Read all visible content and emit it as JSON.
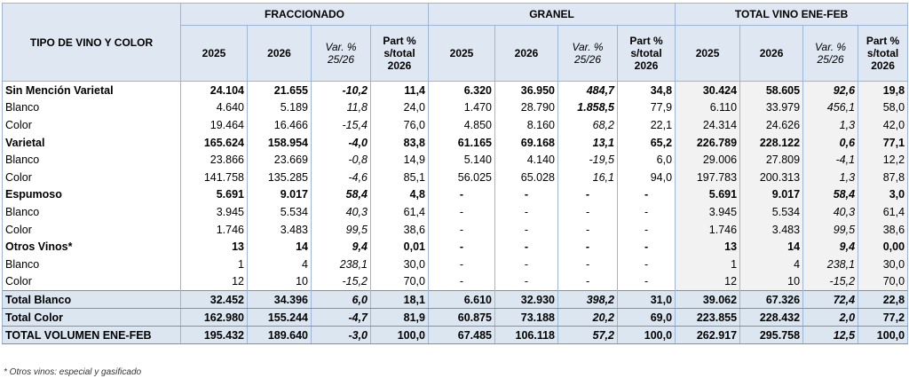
{
  "table": {
    "first_header": "TIPO DE VINO Y COLOR",
    "groups": [
      "FRACCIONADO",
      "GRANEL",
      "TOTAL VINO ENE-FEB"
    ],
    "columns": [
      "2025",
      "2026",
      "Var. %\n25/26",
      "Part %\ns/total\n2026"
    ],
    "rows": [
      {
        "label": "Sin Mención Varietal",
        "cells": [
          "24.104",
          "21.655",
          "-10,2",
          "11,4",
          "6.320",
          "36.950",
          "484,7",
          "34,8",
          "30.424",
          "58.605",
          "92,6",
          "19,8"
        ]
      },
      {
        "label": "Blanco",
        "cells": [
          "4.640",
          "5.189",
          "11,8",
          "24,0",
          "1.470",
          "28.790",
          "1.858,5",
          "77,9",
          "6.110",
          "33.979",
          "456,1",
          "58,0"
        ]
      },
      {
        "label": "Color",
        "cells": [
          "19.464",
          "16.466",
          "-15,4",
          "76,0",
          "4.850",
          "8.160",
          "68,2",
          "22,1",
          "24.314",
          "24.626",
          "1,3",
          "42,0"
        ]
      },
      {
        "label": "Varietal",
        "cells": [
          "165.624",
          "158.954",
          "-4,0",
          "83,8",
          "61.165",
          "69.168",
          "13,1",
          "65,2",
          "226.789",
          "228.122",
          "0,6",
          "77,1"
        ]
      },
      {
        "label": "Blanco",
        "cells": [
          "23.866",
          "23.669",
          "-0,8",
          "14,9",
          "5.140",
          "4.140",
          "-19,5",
          "6,0",
          "29.006",
          "27.809",
          "-4,1",
          "12,2"
        ]
      },
      {
        "label": "Color",
        "cells": [
          "141.758",
          "135.285",
          "-4,6",
          "85,1",
          "56.025",
          "65.028",
          "16,1",
          "94,0",
          "197.783",
          "200.313",
          "1,3",
          "87,8"
        ]
      },
      {
        "label": "Espumoso",
        "cells": [
          "5.691",
          "9.017",
          "58,4",
          "4,8",
          "-",
          "-",
          "-",
          "-",
          "5.691",
          "9.017",
          "58,4",
          "3,0"
        ]
      },
      {
        "label": "Blanco",
        "cells": [
          "3.945",
          "5.534",
          "40,3",
          "61,4",
          "-",
          "-",
          "-",
          "-",
          "3.945",
          "5.534",
          "40,3",
          "61,4"
        ]
      },
      {
        "label": "Color",
        "cells": [
          "1.746",
          "3.483",
          "99,5",
          "38,6",
          "-",
          "-",
          "-",
          "-",
          "1.746",
          "3.483",
          "99,5",
          "38,6"
        ]
      },
      {
        "label": "Otros Vinos*",
        "cells": [
          "13",
          "14",
          "9,4",
          "0,01",
          "-",
          "-",
          "-",
          "-",
          "13",
          "14",
          "9,4",
          "0,00"
        ]
      },
      {
        "label": "Blanco",
        "cells": [
          "1",
          "4",
          "238,1",
          "30,0",
          "-",
          "-",
          "-",
          "-",
          "1",
          "4",
          "238,1",
          "30,0"
        ]
      },
      {
        "label": "Color",
        "cells": [
          "12",
          "10",
          "-15,2",
          "70,0",
          "-",
          "-",
          "-",
          "-",
          "12",
          "10",
          "-15,2",
          "70,0"
        ]
      },
      {
        "label": "Total Blanco",
        "cells": [
          "32.452",
          "34.396",
          "6,0",
          "18,1",
          "6.610",
          "32.930",
          "398,2",
          "31,0",
          "39.062",
          "67.326",
          "72,4",
          "22,8"
        ]
      },
      {
        "label": "Total Color",
        "cells": [
          "162.980",
          "155.244",
          "-4,7",
          "81,9",
          "60.875",
          "73.188",
          "20,2",
          "69,0",
          "223.855",
          "228.432",
          "2,0",
          "77,2"
        ]
      },
      {
        "label": "TOTAL VOLUMEN ENE-FEB",
        "cells": [
          "195.432",
          "189.640",
          "-3,0",
          "100,0",
          "67.485",
          "106.118",
          "57,2",
          "100,0",
          "262.917",
          "295.758",
          "12,5",
          "100,0"
        ]
      }
    ]
  },
  "footnote": "* Otros vinos: especial y gasificado"
}
